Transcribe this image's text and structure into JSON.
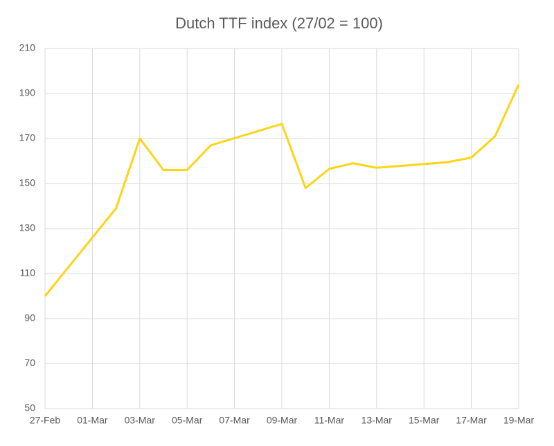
{
  "chart_data": {
    "type": "line",
    "title": "Dutch TTF index (27/02 = 100)",
    "x": [
      "27-Feb",
      "02-Mar",
      "03-Mar",
      "04-Mar",
      "05-Mar",
      "06-Mar",
      "09-Mar",
      "10-Mar",
      "11-Mar",
      "12-Mar",
      "13-Mar",
      "16-Mar",
      "17-Mar",
      "18-Mar",
      "19-Mar"
    ],
    "series": [
      {
        "name": "Dutch TTF index",
        "color": "#fdd416",
        "values": [
          100,
          139,
          170,
          156,
          156,
          167,
          176.5,
          148,
          156.5,
          159,
          157,
          159.5,
          161.5,
          171,
          194
        ]
      }
    ],
    "xlim": [
      "27-Feb",
      "19-Mar"
    ],
    "xticks": [
      "27-Feb",
      "01-Mar",
      "03-Mar",
      "05-Mar",
      "07-Mar",
      "09-Mar",
      "11-Mar",
      "13-Mar",
      "15-Mar",
      "17-Mar",
      "19-Mar"
    ],
    "ylim": [
      50,
      210
    ],
    "yticks": [
      50,
      70,
      90,
      110,
      130,
      150,
      170,
      190,
      210
    ],
    "grid": true
  }
}
